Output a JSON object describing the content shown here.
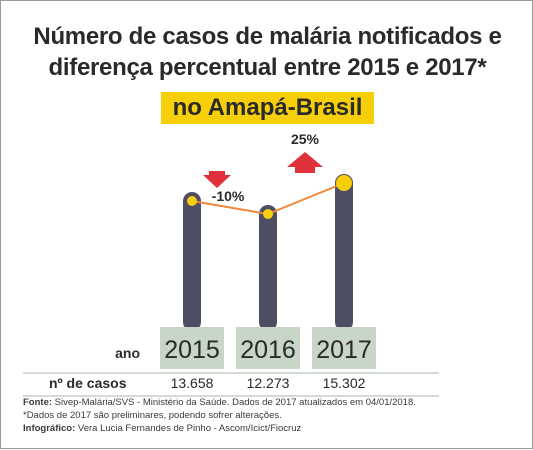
{
  "title_line1": "Número de casos de malária notificados e",
  "title_line2": "diferença percentual entre 2015 e 2017*",
  "subtitle": "no Amapá-Brasil",
  "colors": {
    "column": "#4e4e63",
    "line": "#f0873a",
    "point": "#f6cf0a",
    "highlight": "#f6cf0a",
    "year_box": "#c7d6c7",
    "arrow": "#e0303c"
  },
  "chart_data": {
    "type": "line",
    "title": "Número de casos de malária notificados e diferença percentual entre 2015 e 2017*",
    "subtitle": "no Amapá-Brasil",
    "categories": [
      "2015",
      "2016",
      "2017"
    ],
    "values": [
      13658,
      12273,
      15302
    ],
    "value_labels": [
      "13.658",
      "12.273",
      "15.302"
    ],
    "changes": [
      {
        "label": "-10%",
        "direction": "down"
      },
      {
        "label": "25%",
        "direction": "up"
      }
    ],
    "row_label_year": "ano",
    "row_label_cases": "nº de casos",
    "grid": false
  },
  "footer": {
    "source_label": "Fonte:",
    "source_text": " Sivep-Malária/SVS - Ministério da Saúde. Dados de 2017 atualizados em 04/01/2018.",
    "note": "*Dados de 2017 são preliminares, podendo sofrer alterações.",
    "credit_label": "Infográfico:",
    "credit_text": " Vera Lucia Fernandes de Pinho - Ascom/Icict/Fiocruz"
  }
}
